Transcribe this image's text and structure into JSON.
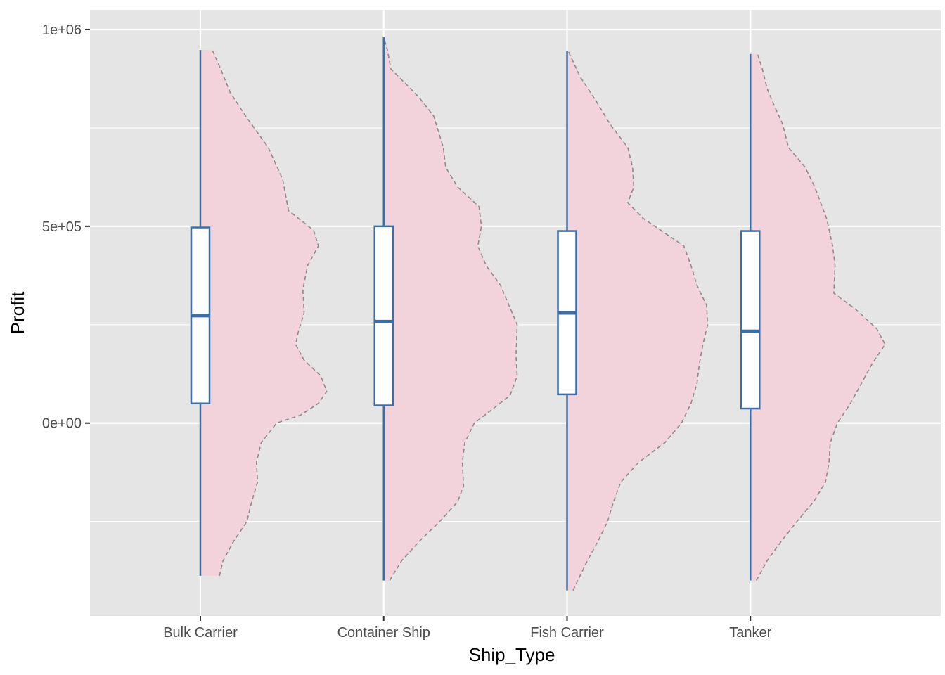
{
  "chart_data": {
    "type": "half-violin + boxplot",
    "xlabel": "Ship_Type",
    "ylabel": "Profit",
    "ylim": [
      -490000,
      1050000
    ],
    "y_ticks": [
      {
        "value": 0,
        "label": "0e+00"
      },
      {
        "value": 500000,
        "label": "5e+05"
      },
      {
        "value": 1000000,
        "label": "1e+06"
      }
    ],
    "y_minor_gridlines": [
      -250000,
      250000,
      750000
    ],
    "grid": true,
    "colors": {
      "panel_background": "#e5e5e5",
      "gridline": "#ffffff",
      "violin_fill": "#f2d3db",
      "violin_outline": "#8c8c8c",
      "box_outline": "#3d6ea8",
      "box_fill": "#ffffff"
    },
    "categories": [
      "Bulk Carrier",
      "Container Ship",
      "Fish Carrier",
      "Tanker"
    ],
    "boxplots": [
      {
        "category": "Bulk Carrier",
        "min": -388000,
        "q1": 50000,
        "median": 273000,
        "q3": 497000,
        "max": 948000
      },
      {
        "category": "Container Ship",
        "min": -400000,
        "q1": 45000,
        "median": 258000,
        "q3": 500000,
        "max": 980000
      },
      {
        "category": "Fish Carrier",
        "min": -425000,
        "q1": 73000,
        "median": 280000,
        "q3": 488000,
        "max": 945000
      },
      {
        "category": "Tanker",
        "min": -400000,
        "q1": 37000,
        "median": 233000,
        "q3": 488000,
        "max": 938000
      }
    ],
    "violins": [
      {
        "category": "Bulk Carrier",
        "y_min": -388000,
        "y_max": 948000,
        "density": [
          [
            -388000,
            0.16
          ],
          [
            -350000,
            0.19
          ],
          [
            -300000,
            0.28
          ],
          [
            -250000,
            0.39
          ],
          [
            -200000,
            0.43
          ],
          [
            -150000,
            0.48
          ],
          [
            -100000,
            0.47
          ],
          [
            -50000,
            0.51
          ],
          [
            0,
            0.64
          ],
          [
            20000,
            0.84
          ],
          [
            50000,
            0.99
          ],
          [
            80000,
            1.06
          ],
          [
            120000,
            1.01
          ],
          [
            160000,
            0.87
          ],
          [
            200000,
            0.8
          ],
          [
            230000,
            0.82
          ],
          [
            280000,
            0.87
          ],
          [
            340000,
            0.86
          ],
          [
            400000,
            0.9
          ],
          [
            450000,
            0.99
          ],
          [
            490000,
            0.95
          ],
          [
            540000,
            0.74
          ],
          [
            620000,
            0.69
          ],
          [
            700000,
            0.57
          ],
          [
            780000,
            0.38
          ],
          [
            840000,
            0.25
          ],
          [
            900000,
            0.17
          ],
          [
            948000,
            0.1
          ]
        ]
      },
      {
        "category": "Container Ship",
        "y_min": -400000,
        "y_max": 980000,
        "density": [
          [
            -400000,
            0.05
          ],
          [
            -350000,
            0.15
          ],
          [
            -300000,
            0.3
          ],
          [
            -250000,
            0.47
          ],
          [
            -200000,
            0.62
          ],
          [
            -160000,
            0.67
          ],
          [
            -100000,
            0.66
          ],
          [
            -50000,
            0.68
          ],
          [
            0,
            0.76
          ],
          [
            30000,
            0.89
          ],
          [
            70000,
            1.06
          ],
          [
            120000,
            1.12
          ],
          [
            170000,
            1.11
          ],
          [
            250000,
            1.12
          ],
          [
            300000,
            1.05
          ],
          [
            350000,
            0.98
          ],
          [
            400000,
            0.86
          ],
          [
            450000,
            0.79
          ],
          [
            500000,
            0.82
          ],
          [
            550000,
            0.8
          ],
          [
            600000,
            0.62
          ],
          [
            650000,
            0.52
          ],
          [
            700000,
            0.5
          ],
          [
            780000,
            0.42
          ],
          [
            830000,
            0.29
          ],
          [
            900000,
            0.06
          ],
          [
            950000,
            0.03
          ],
          [
            980000,
            0.0
          ]
        ]
      },
      {
        "category": "Fish Carrier",
        "y_min": -425000,
        "y_max": 945000,
        "density": [
          [
            -425000,
            0.05
          ],
          [
            -350000,
            0.17
          ],
          [
            -300000,
            0.26
          ],
          [
            -250000,
            0.34
          ],
          [
            -200000,
            0.39
          ],
          [
            -150000,
            0.45
          ],
          [
            -100000,
            0.6
          ],
          [
            -50000,
            0.82
          ],
          [
            0,
            0.96
          ],
          [
            50000,
            1.04
          ],
          [
            100000,
            1.09
          ],
          [
            150000,
            1.11
          ],
          [
            200000,
            1.14
          ],
          [
            250000,
            1.18
          ],
          [
            300000,
            1.17
          ],
          [
            350000,
            1.09
          ],
          [
            400000,
            1.04
          ],
          [
            450000,
            0.98
          ],
          [
            520000,
            0.64
          ],
          [
            560000,
            0.51
          ],
          [
            600000,
            0.56
          ],
          [
            650000,
            0.55
          ],
          [
            700000,
            0.51
          ],
          [
            760000,
            0.36
          ],
          [
            820000,
            0.24
          ],
          [
            880000,
            0.11
          ],
          [
            945000,
            0.01
          ]
        ]
      },
      {
        "category": "Tanker",
        "y_min": -400000,
        "y_max": 938000,
        "density": [
          [
            -400000,
            0.05
          ],
          [
            -350000,
            0.14
          ],
          [
            -300000,
            0.26
          ],
          [
            -250000,
            0.39
          ],
          [
            -200000,
            0.53
          ],
          [
            -150000,
            0.63
          ],
          [
            -100000,
            0.66
          ],
          [
            -50000,
            0.67
          ],
          [
            0,
            0.73
          ],
          [
            50000,
            0.84
          ],
          [
            100000,
            0.93
          ],
          [
            150000,
            1.02
          ],
          [
            200000,
            1.13
          ],
          [
            240000,
            1.06
          ],
          [
            290000,
            0.88
          ],
          [
            330000,
            0.7
          ],
          [
            400000,
            0.71
          ],
          [
            450000,
            0.69
          ],
          [
            520000,
            0.64
          ],
          [
            600000,
            0.54
          ],
          [
            650000,
            0.46
          ],
          [
            700000,
            0.32
          ],
          [
            760000,
            0.27
          ],
          [
            800000,
            0.21
          ],
          [
            850000,
            0.14
          ],
          [
            900000,
            0.1
          ],
          [
            938000,
            0.06
          ]
        ]
      }
    ]
  }
}
